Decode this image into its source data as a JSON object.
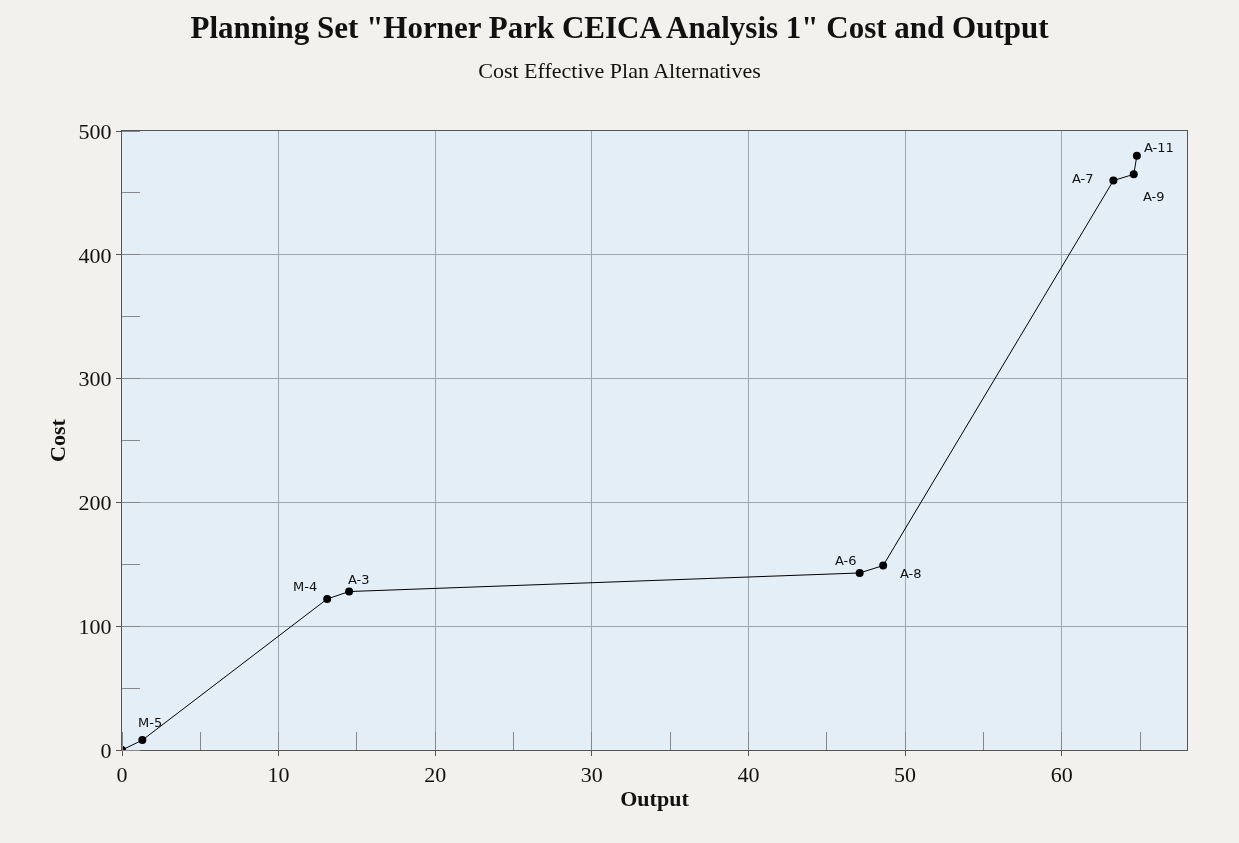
{
  "chart_data": {
    "type": "line",
    "title": "Planning Set \"Horner Park CEICA Analysis 1\" Cost and Output",
    "subtitle": "Cost Effective Plan Alternatives",
    "xlabel": "Output",
    "ylabel": "Cost",
    "x": [
      0,
      1.3,
      13.1,
      14.5,
      47.1,
      48.6,
      63.3,
      64.6,
      64.8
    ],
    "series": [
      {
        "color": "#000000",
        "values": [
          0,
          8,
          122,
          128,
          143,
          149,
          460,
          465,
          480
        ]
      }
    ],
    "marker": "circle",
    "line_style": "solid",
    "grid": true,
    "xlim": [
      0,
      68
    ],
    "ylim": [
      0,
      500
    ],
    "xticks": [
      0,
      10,
      20,
      30,
      40,
      50,
      60
    ],
    "yticks": [
      0,
      100,
      200,
      300,
      400,
      500
    ],
    "annotations": [
      {
        "text": "M-5",
        "x": 1.3,
        "y": 8
      },
      {
        "text": "M-4",
        "x": 13.1,
        "y": 122
      },
      {
        "text": "A-3",
        "x": 14.5,
        "y": 128
      },
      {
        "text": "A-6",
        "x": 47.1,
        "y": 143
      },
      {
        "text": "A-8",
        "x": 48.6,
        "y": 149
      },
      {
        "text": "A-7",
        "x": 63.3,
        "y": 460
      },
      {
        "text": "A-9",
        "x": 64.6,
        "y": 465
      },
      {
        "text": "A-11",
        "x": 64.8,
        "y": 480
      }
    ]
  }
}
